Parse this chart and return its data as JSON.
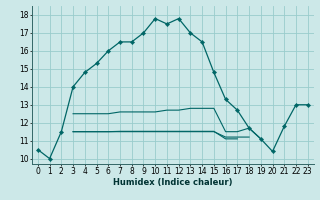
{
  "xlabel": "Humidex (Indice chaleur)",
  "x": [
    0,
    1,
    2,
    3,
    4,
    5,
    6,
    7,
    8,
    9,
    10,
    11,
    12,
    13,
    14,
    15,
    16,
    17,
    18,
    19,
    20,
    21,
    22,
    23
  ],
  "line_main": [
    10.5,
    10.0,
    11.5,
    14.0,
    14.8,
    15.3,
    16.0,
    16.5,
    16.5,
    17.0,
    17.8,
    17.5,
    17.8,
    17.0,
    16.5,
    14.8,
    13.3,
    12.7,
    11.7,
    11.1,
    10.4,
    11.8,
    13.0,
    13.0
  ],
  "line2": [
    null,
    null,
    null,
    12.5,
    12.5,
    12.5,
    12.5,
    12.6,
    12.6,
    12.6,
    12.6,
    12.7,
    12.7,
    12.8,
    12.8,
    12.8,
    11.5,
    11.5,
    11.7,
    11.1,
    null,
    null,
    null,
    null
  ],
  "line3": [
    null,
    null,
    null,
    11.5,
    11.5,
    11.5,
    11.5,
    11.5,
    11.5,
    11.5,
    11.5,
    11.5,
    11.5,
    11.5,
    11.5,
    11.5,
    11.2,
    11.2,
    11.2,
    null,
    null,
    null,
    null,
    null
  ],
  "line4": [
    null,
    null,
    null,
    11.5,
    11.5,
    11.5,
    11.5,
    11.52,
    11.52,
    11.52,
    11.52,
    11.52,
    11.52,
    11.52,
    11.52,
    11.52,
    11.1,
    11.1,
    null,
    null,
    null,
    null,
    null,
    null
  ],
  "bg_color": "#cce8e8",
  "grid_color": "#99cccc",
  "line_color": "#006666",
  "marker": "D",
  "marker_size": 2.2,
  "xlim": [
    -0.5,
    23.5
  ],
  "ylim": [
    9.7,
    18.5
  ],
  "xticks": [
    0,
    1,
    2,
    3,
    4,
    5,
    6,
    7,
    8,
    9,
    10,
    11,
    12,
    13,
    14,
    15,
    16,
    17,
    18,
    19,
    20,
    21,
    22,
    23
  ],
  "yticks": [
    10,
    11,
    12,
    13,
    14,
    15,
    16,
    17,
    18
  ],
  "tick_fontsize": 5.5,
  "xlabel_fontsize": 6.0
}
